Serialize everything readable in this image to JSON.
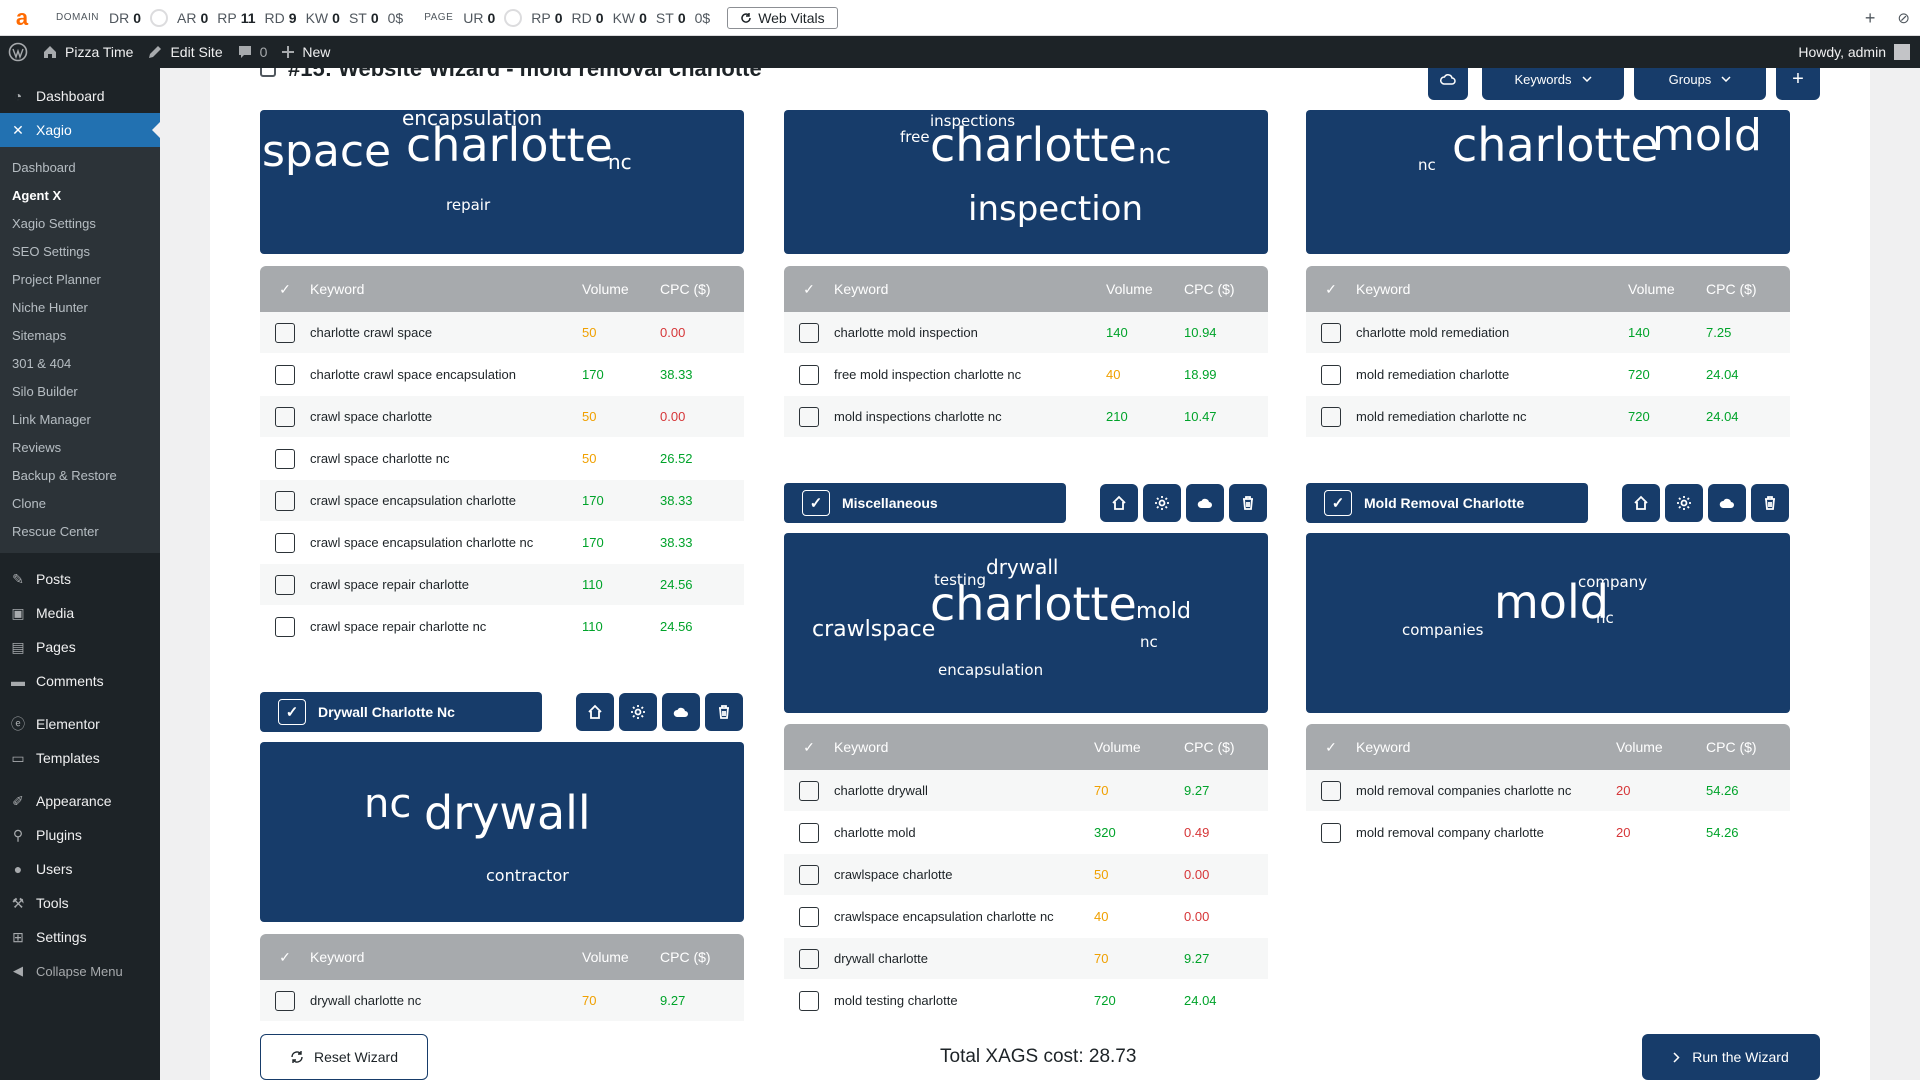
{
  "seobar": {
    "logo": "a",
    "domain_label": "DOMAIN",
    "domain_metrics": [
      {
        "k": "DR",
        "v": "0",
        "circle": true
      },
      {
        "k": "AR",
        "v": "0"
      },
      {
        "k": "RP",
        "v": "11"
      },
      {
        "k": "RD",
        "v": "9"
      },
      {
        "k": "KW",
        "v": "0"
      },
      {
        "k": "ST",
        "v": "0",
        "suffix": "0$"
      }
    ],
    "page_label": "PAGE",
    "page_metrics": [
      {
        "k": "UR",
        "v": "0",
        "circle": true
      },
      {
        "k": "RP",
        "v": "0"
      },
      {
        "k": "RD",
        "v": "0"
      },
      {
        "k": "KW",
        "v": "0"
      },
      {
        "k": "ST",
        "v": "0",
        "suffix": "0$"
      }
    ],
    "web_vitals": "Web Vitals"
  },
  "adminbar": {
    "site": "Pizza Time",
    "edit_site": "Edit Site",
    "comments": "0",
    "new": "New",
    "howdy": "Howdy, admin"
  },
  "sidebar": {
    "top1": [
      {
        "label": "Dashboard",
        "icon": "dashboard-icon"
      }
    ],
    "active": {
      "label": "Xagio",
      "icon": "xagio-icon"
    },
    "submenu": [
      "Dashboard",
      "Agent X",
      "Xagio Settings",
      "SEO Settings",
      "Project Planner",
      "Niche Hunter",
      "Sitemaps",
      "301 & 404",
      "Silo Builder",
      "Link Manager",
      "Reviews",
      "Backup & Restore",
      "Clone",
      "Rescue Center"
    ],
    "current_sub": "Agent X",
    "group2": [
      {
        "label": "Posts",
        "icon": "pin-icon"
      },
      {
        "label": "Media",
        "icon": "media-icon"
      },
      {
        "label": "Pages",
        "icon": "pages-icon"
      },
      {
        "label": "Comments",
        "icon": "comments-icon"
      }
    ],
    "group3": [
      {
        "label": "Elementor",
        "icon": "elementor-icon"
      },
      {
        "label": "Templates",
        "icon": "folder-icon"
      }
    ],
    "group4": [
      {
        "label": "Appearance",
        "icon": "brush-icon"
      },
      {
        "label": "Plugins",
        "icon": "plug-icon"
      },
      {
        "label": "Users",
        "icon": "users-icon"
      },
      {
        "label": "Tools",
        "icon": "wrench-icon"
      },
      {
        "label": "Settings",
        "icon": "settings-icon"
      }
    ],
    "collapse": "Collapse Menu"
  },
  "main": {
    "title": "#15: Website Wizard - mold removal charlotte",
    "keywords_btn": "Keywords",
    "groups_btn": "Groups",
    "plus_btn": "+",
    "col_keyword": "Keyword",
    "col_volume": "Volume",
    "col_cpc": "CPC ($)",
    "total_cost": "Total XAGS cost: 28.73",
    "reset": "Reset Wizard",
    "run": "Run the Wizard"
  },
  "groups": [
    {
      "id": "g1",
      "cloud": [
        {
          "t": "encapsulation",
          "s": 20
        },
        {
          "t": "space",
          "s": 44
        },
        {
          "t": "charlotte",
          "s": 46
        },
        {
          "t": "nc",
          "s": 20
        },
        {
          "t": "repair",
          "s": 15
        }
      ],
      "rows": [
        {
          "kw": "charlotte crawl space",
          "vol": "50",
          "vc": "orange",
          "cpc": "0.00",
          "cc": "red"
        },
        {
          "kw": "charlotte crawl space encapsulation",
          "vol": "170",
          "vc": "green",
          "cpc": "38.33",
          "cc": "green"
        },
        {
          "kw": "crawl space charlotte",
          "vol": "50",
          "vc": "orange",
          "cpc": "0.00",
          "cc": "red"
        },
        {
          "kw": "crawl space charlotte nc",
          "vol": "50",
          "vc": "orange",
          "cpc": "26.52",
          "cc": "green"
        },
        {
          "kw": "crawl space encapsulation charlotte",
          "vol": "170",
          "vc": "green",
          "cpc": "38.33",
          "cc": "green"
        },
        {
          "kw": "crawl space encapsulation charlotte nc",
          "vol": "170",
          "vc": "green",
          "cpc": "38.33",
          "cc": "green"
        },
        {
          "kw": "crawl space repair charlotte",
          "vol": "110",
          "vc": "green",
          "cpc": "24.56",
          "cc": "green"
        },
        {
          "kw": "crawl space repair charlotte nc",
          "vol": "110",
          "vc": "green",
          "cpc": "24.56",
          "cc": "green"
        }
      ]
    },
    {
      "id": "g2",
      "cloud": [
        {
          "t": "inspections",
          "s": 15
        },
        {
          "t": "free",
          "s": 15
        },
        {
          "t": "charlotte",
          "s": 46
        },
        {
          "t": "nc",
          "s": 28
        },
        {
          "t": "inspection",
          "s": 34
        }
      ],
      "rows": [
        {
          "kw": "charlotte mold inspection",
          "vol": "140",
          "vc": "green",
          "cpc": "10.94",
          "cc": "green"
        },
        {
          "kw": "free mold inspection charlotte nc",
          "vol": "40",
          "vc": "orange",
          "cpc": "18.99",
          "cc": "green"
        },
        {
          "kw": "mold inspections charlotte nc",
          "vol": "210",
          "vc": "green",
          "cpc": "10.47",
          "cc": "green"
        }
      ]
    },
    {
      "id": "g3",
      "cloud": [
        {
          "t": "nc",
          "s": 15
        },
        {
          "t": "charlotte",
          "s": 46
        },
        {
          "t": "mold",
          "s": 44
        }
      ],
      "rows": [
        {
          "kw": "charlotte mold remediation",
          "vol": "140",
          "vc": "green",
          "cpc": "7.25",
          "cc": "green"
        },
        {
          "kw": "mold remediation charlotte",
          "vol": "720",
          "vc": "green",
          "cpc": "24.04",
          "cc": "green"
        },
        {
          "kw": "mold remediation charlotte nc",
          "vol": "720",
          "vc": "green",
          "cpc": "24.04",
          "cc": "green"
        }
      ]
    },
    {
      "id": "g4",
      "name": "Drywall Charlotte Nc",
      "cloud": [
        {
          "t": "nc",
          "s": 40
        },
        {
          "t": "drywall",
          "s": 46
        },
        {
          "t": "contractor",
          "s": 16
        }
      ],
      "rows": [
        {
          "kw": "drywall charlotte nc",
          "vol": "70",
          "vc": "orange",
          "cpc": "9.27",
          "cc": "green"
        }
      ]
    },
    {
      "id": "g5",
      "name": "Miscellaneous",
      "cloud": [
        {
          "t": "drywall",
          "s": 20
        },
        {
          "t": "testing",
          "s": 15
        },
        {
          "t": "charlotte",
          "s": 46
        },
        {
          "t": "mold",
          "s": 22
        },
        {
          "t": "crawlspace",
          "s": 22
        },
        {
          "t": "nc",
          "s": 15
        },
        {
          "t": "encapsulation",
          "s": 15
        }
      ],
      "rows": [
        {
          "kw": "charlotte drywall",
          "vol": "70",
          "vc": "orange",
          "cpc": "9.27",
          "cc": "green"
        },
        {
          "kw": "charlotte mold",
          "vol": "320",
          "vc": "green",
          "cpc": "0.49",
          "cc": "red"
        },
        {
          "kw": "crawlspace charlotte",
          "vol": "50",
          "vc": "orange",
          "cpc": "0.00",
          "cc": "red"
        },
        {
          "kw": "crawlspace encapsulation charlotte nc",
          "vol": "40",
          "vc": "orange",
          "cpc": "0.00",
          "cc": "red"
        },
        {
          "kw": "drywall charlotte",
          "vol": "70",
          "vc": "orange",
          "cpc": "9.27",
          "cc": "green"
        },
        {
          "kw": "mold testing charlotte",
          "vol": "720",
          "vc": "green",
          "cpc": "24.04",
          "cc": "green"
        }
      ]
    },
    {
      "id": "g6",
      "name": "Mold Removal Charlotte",
      "cloud": [
        {
          "t": "company",
          "s": 15
        },
        {
          "t": "mold",
          "s": 46
        },
        {
          "t": "nc",
          "s": 15
        },
        {
          "t": "companies",
          "s": 15
        }
      ],
      "rows": [
        {
          "kw": "mold removal companies charlotte nc",
          "vol": "20",
          "vc": "red",
          "cpc": "54.26",
          "cc": "green"
        },
        {
          "kw": "mold removal company charlotte",
          "vol": "20",
          "vc": "red",
          "cpc": "54.26",
          "cc": "green"
        }
      ]
    }
  ]
}
